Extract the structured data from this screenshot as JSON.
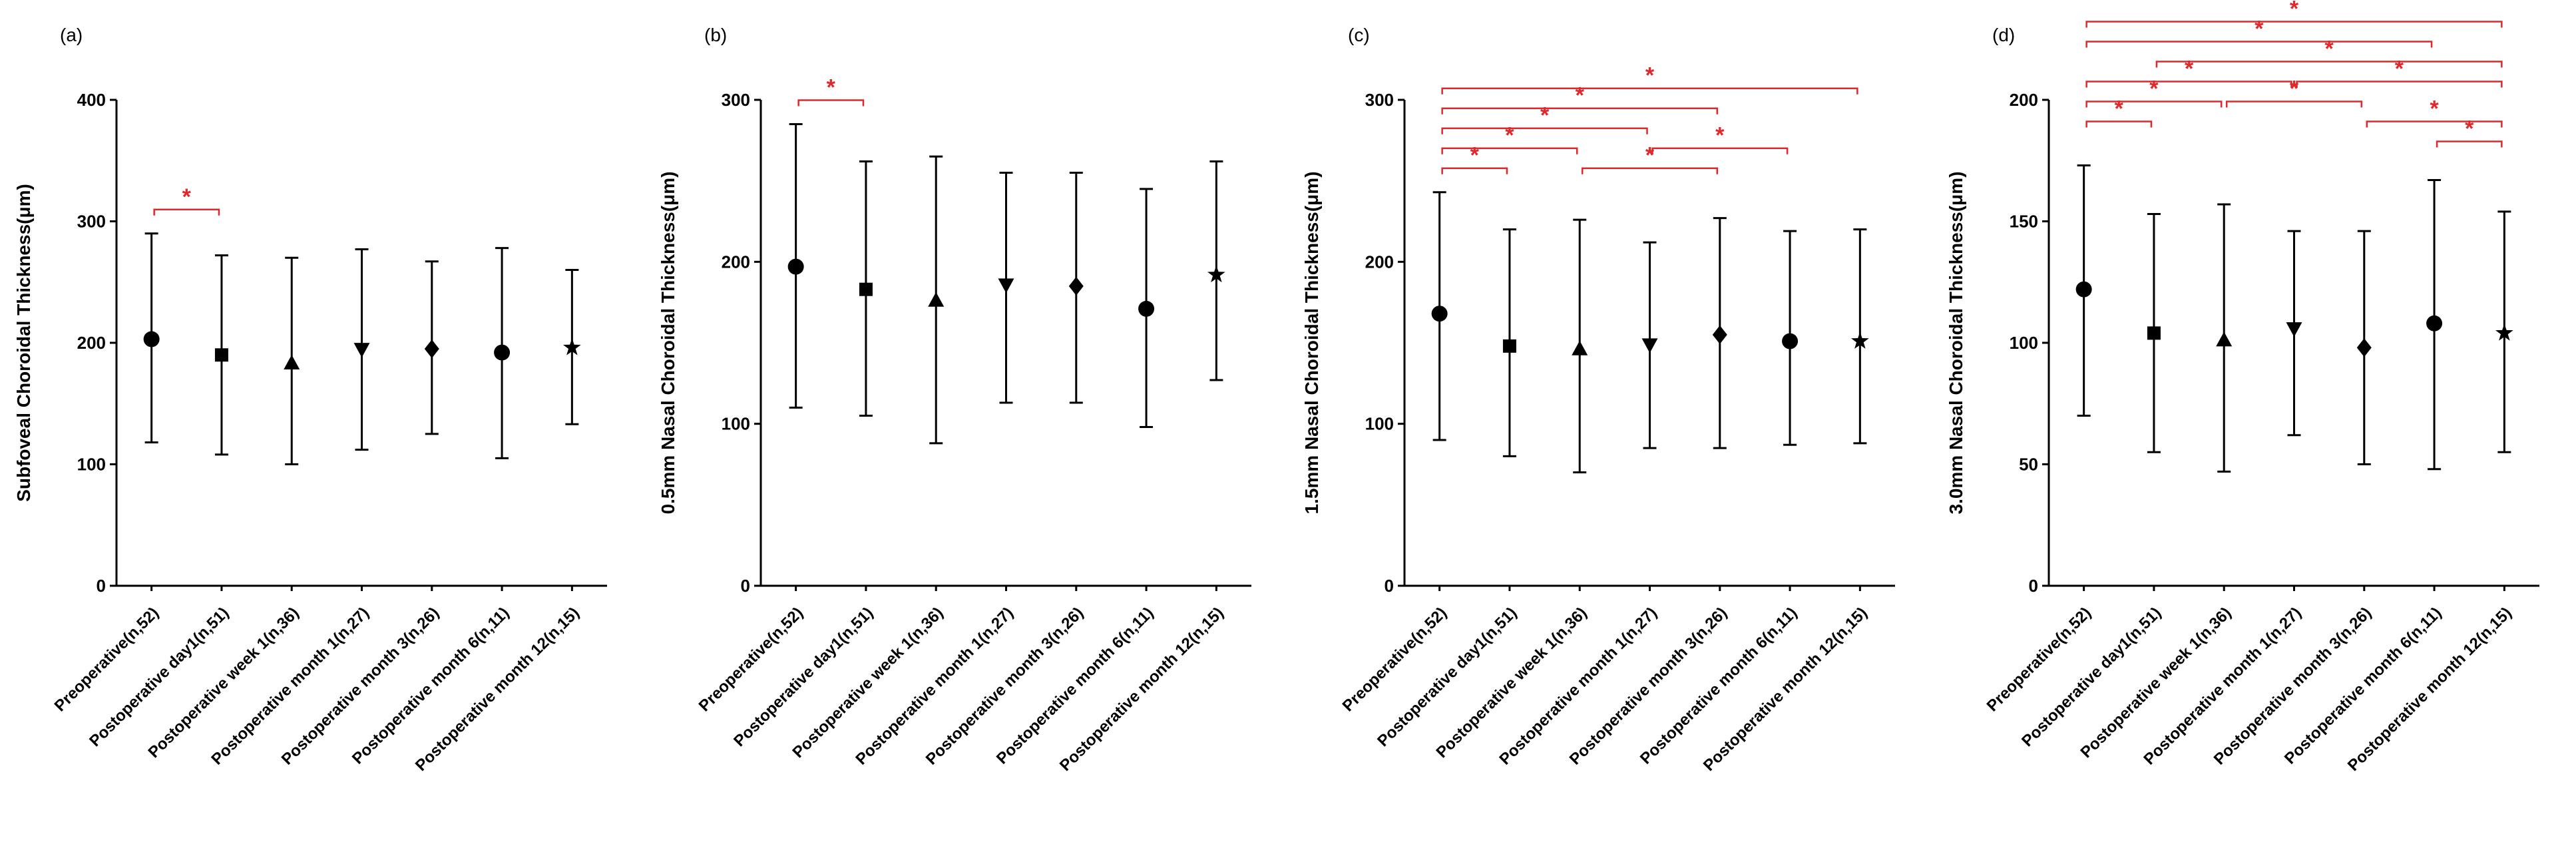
{
  "page": {
    "background": "#ffffff"
  },
  "colors": {
    "data": "#000000",
    "significance": "#e62528"
  },
  "chart_data": [
    {
      "type": "scatter",
      "panel_label": "(a)",
      "ylabel": "Subfoveal Choroidal Thickness(μm)",
      "ylim": [
        0,
        400
      ],
      "yticks": [
        0,
        100,
        200,
        300,
        400
      ],
      "categories": [
        "Preoperative(n,52)",
        "Postoperative day1(n,51)",
        "Postoperative week 1(n,36)",
        "Postoperative month 1(n,27)",
        "Postoperative month 3(n,26)",
        "Postoperative month 6(n,11)",
        "Postoperative month 12(n,15)"
      ],
      "markers": [
        "circle",
        "square",
        "triangle-up",
        "triangle-down",
        "diamond",
        "circle",
        "star"
      ],
      "series": [
        {
          "name": "mean",
          "values": [
            203,
            190,
            183,
            195,
            195,
            192,
            196
          ]
        },
        {
          "name": "upper_error",
          "values": [
            290,
            272,
            270,
            277,
            267,
            278,
            260
          ]
        },
        {
          "name": "lower_error",
          "values": [
            118,
            108,
            100,
            112,
            125,
            105,
            133
          ]
        }
      ],
      "significance": [
        {
          "from": 0,
          "to": 1,
          "level": 0,
          "label": "*"
        }
      ]
    },
    {
      "type": "scatter",
      "panel_label": "(b)",
      "ylabel": "0.5mm Nasal Choroidal Thickness(μm)",
      "ylim": [
        0,
        300
      ],
      "yticks": [
        0,
        100,
        200,
        300
      ],
      "categories": [
        "Preoperative(n,52)",
        "Postoperative day1(n,51)",
        "Postoperative week 1(n,36)",
        "Postoperative month 1(n,27)",
        "Postoperative month 3(n,26)",
        "Postoperative month 6(n,11)",
        "Postoperative month 12(n,15)"
      ],
      "markers": [
        "circle",
        "square",
        "triangle-up",
        "triangle-down",
        "diamond",
        "circle",
        "star"
      ],
      "series": [
        {
          "name": "mean",
          "values": [
            197,
            183,
            176,
            186,
            185,
            171,
            192
          ]
        },
        {
          "name": "upper_error",
          "values": [
            285,
            262,
            265,
            255,
            255,
            245,
            262
          ]
        },
        {
          "name": "lower_error",
          "values": [
            110,
            105,
            88,
            113,
            113,
            98,
            127
          ]
        }
      ],
      "significance": [
        {
          "from": 0,
          "to": 1,
          "level": 0,
          "label": "*"
        }
      ]
    },
    {
      "type": "scatter",
      "panel_label": "(c)",
      "ylabel": "1.5mm Nasal Choroidal Thickness(μm)",
      "ylim": [
        0,
        300
      ],
      "yticks": [
        0,
        100,
        200,
        300
      ],
      "categories": [
        "Preoperative(n,52)",
        "Postoperative day1(n,51)",
        "Postoperative week 1(n,36)",
        "Postoperative month 1(n,27)",
        "Postoperative month 3(n,26)",
        "Postoperative month 6(n,11)",
        "Postoperative month 12(n,15)"
      ],
      "markers": [
        "circle",
        "square",
        "triangle-up",
        "triangle-down",
        "diamond",
        "circle",
        "star"
      ],
      "series": [
        {
          "name": "mean",
          "values": [
            168,
            148,
            146,
            149,
            155,
            151,
            151
          ]
        },
        {
          "name": "upper_error",
          "values": [
            243,
            220,
            226,
            212,
            227,
            219,
            220
          ]
        },
        {
          "name": "lower_error",
          "values": [
            90,
            80,
            70,
            85,
            85,
            87,
            88
          ]
        }
      ],
      "significance": [
        {
          "from": 0,
          "to": 1,
          "level": 0,
          "label": "*"
        },
        {
          "from": 2,
          "to": 4,
          "level": 0,
          "label": "*"
        },
        {
          "from": 0,
          "to": 2,
          "level": 1,
          "label": "*"
        },
        {
          "from": 3,
          "to": 5,
          "level": 1,
          "label": "*"
        },
        {
          "from": 0,
          "to": 3,
          "level": 2,
          "label": "*"
        },
        {
          "from": 0,
          "to": 4,
          "level": 3,
          "label": "*"
        },
        {
          "from": 0,
          "to": 6,
          "level": 4,
          "label": "*"
        }
      ]
    },
    {
      "type": "scatter",
      "panel_label": "(d)",
      "ylabel": "3.0mm Nasal Choroidal Thickness(μm)",
      "ylim": [
        0,
        200
      ],
      "yticks": [
        0,
        50,
        100,
        150,
        200
      ],
      "categories": [
        "Preoperative(n,52)",
        "Postoperative day1(n,51)",
        "Postoperative week 1(n,36)",
        "Postoperative month 1(n,27)",
        "Postoperative month 3(n,26)",
        "Postoperative month 6(n,11)",
        "Postoperative month 12(n,15)"
      ],
      "markers": [
        "circle",
        "square",
        "triangle-up",
        "triangle-down",
        "diamond",
        "circle",
        "star"
      ],
      "series": [
        {
          "name": "mean",
          "values": [
            122,
            104,
            101,
            106,
            98,
            108,
            104
          ]
        },
        {
          "name": "upper_error",
          "values": [
            173,
            153,
            157,
            146,
            146,
            167,
            154
          ]
        },
        {
          "name": "lower_error",
          "values": [
            70,
            55,
            47,
            62,
            50,
            48,
            55
          ]
        }
      ],
      "significance": [
        {
          "from": 5,
          "to": 6,
          "level": 0,
          "label": "*"
        },
        {
          "from": 0,
          "to": 1,
          "level": 1,
          "label": "*"
        },
        {
          "from": 4,
          "to": 6,
          "level": 1,
          "label": "*"
        },
        {
          "from": 0,
          "to": 2,
          "level": 2,
          "label": "*"
        },
        {
          "from": 2,
          "to": 4,
          "level": 2,
          "label": "*"
        },
        {
          "from": 0,
          "to": 3,
          "level": 3,
          "label": "*"
        },
        {
          "from": 3,
          "to": 6,
          "level": 3,
          "label": "*"
        },
        {
          "from": 1,
          "to": 6,
          "level": 4,
          "label": "*"
        },
        {
          "from": 0,
          "to": 5,
          "level": 5,
          "label": "*"
        },
        {
          "from": 0,
          "to": 6,
          "level": 6,
          "label": "*"
        }
      ]
    }
  ]
}
